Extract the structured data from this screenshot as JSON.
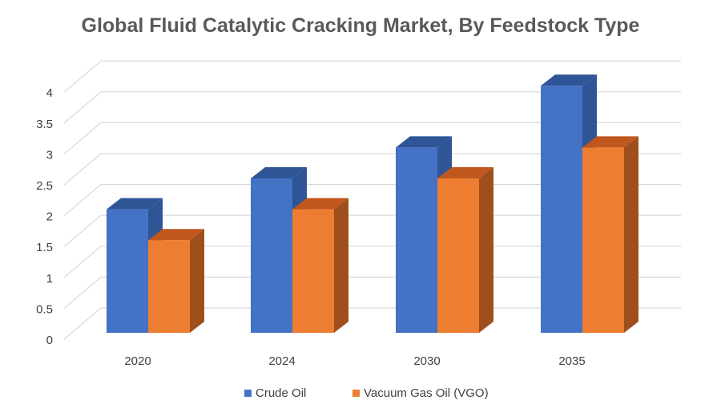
{
  "chart_data": {
    "type": "bar",
    "title": "Global Fluid Catalytic Cracking Market, By Feedstock Type",
    "categories": [
      "2020",
      "2024",
      "2030",
      "2035"
    ],
    "series": [
      {
        "name": "Crude Oil",
        "values": [
          2,
          2.5,
          3,
          4
        ],
        "color": "#4472C4",
        "side_color": "#2F5597",
        "top_color": "#2F5597"
      },
      {
        "name": "Vacuum Gas Oil (VGO)",
        "values": [
          1.5,
          2,
          2.5,
          3
        ],
        "color": "#ED7D31",
        "side_color": "#9E4F1C",
        "top_color": "#C0571C"
      }
    ],
    "yticks": [
      "0",
      "0.5",
      "1",
      "1.5",
      "2",
      "2.5",
      "3",
      "3.5",
      "4"
    ],
    "ylim": [
      0,
      4
    ],
    "grid": true,
    "legend_position": "bottom",
    "style": "3d-clustered-column"
  }
}
